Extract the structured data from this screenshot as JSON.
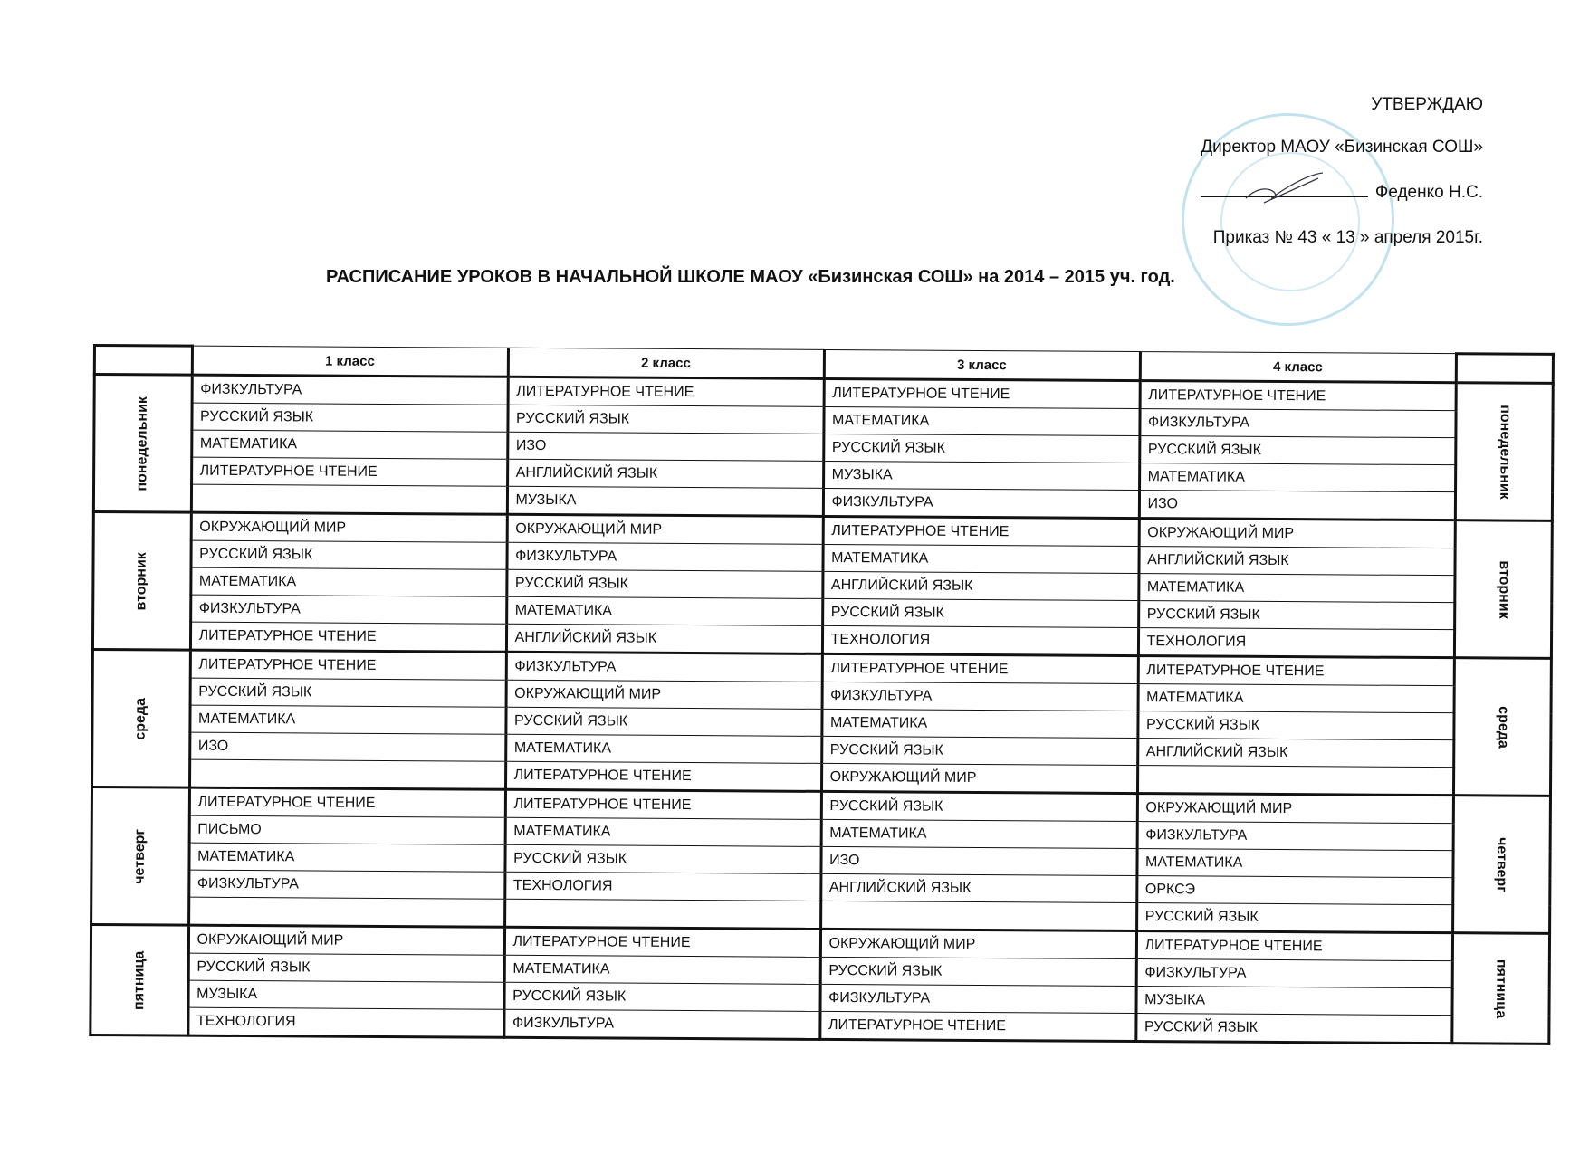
{
  "approval": {
    "approve": "УТВЕРЖДАЮ",
    "director": "Директор МАОУ «Бизинская СОШ»",
    "name": "Феденко Н.С.",
    "order": "Приказ № 43 « 13 » апреля 2015г."
  },
  "title": "РАСПИСАНИЕ УРОКОВ В НАЧАЛЬНОЙ ШКОЛЕ МАОУ «Бизинская СОШ» на 2014 – 2015 уч. год.",
  "classes": [
    "1 класс",
    "2 класс",
    "3 класс",
    "4 класс"
  ],
  "days": [
    {
      "name": "понедельник",
      "rows": [
        [
          "ФИЗКУЛЬТУРА",
          "ЛИТЕРАТУРНОЕ ЧТЕНИЕ",
          "ЛИТЕРАТУРНОЕ ЧТЕНИЕ",
          "ЛИТЕРАТУРНОЕ ЧТЕНИЕ"
        ],
        [
          "РУССКИЙ ЯЗЫК",
          "РУССКИЙ ЯЗЫК",
          "МАТЕМАТИКА",
          "ФИЗКУЛЬТУРА"
        ],
        [
          "МАТЕМАТИКА",
          "ИЗО",
          "РУССКИЙ ЯЗЫК",
          "РУССКИЙ ЯЗЫК"
        ],
        [
          "ЛИТЕРАТУРНОЕ ЧТЕНИЕ",
          "АНГЛИЙСКИЙ ЯЗЫК",
          "МУЗЫКА",
          "МАТЕМАТИКА"
        ],
        [
          "",
          "МУЗЫКА",
          "ФИЗКУЛЬТУРА",
          "ИЗО"
        ]
      ]
    },
    {
      "name": "вторник",
      "rows": [
        [
          "ОКРУЖАЮЩИЙ МИР",
          "ОКРУЖАЮЩИЙ МИР",
          "ЛИТЕРАТУРНОЕ ЧТЕНИЕ",
          "ОКРУЖАЮЩИЙ МИР"
        ],
        [
          "РУССКИЙ ЯЗЫК",
          "ФИЗКУЛЬТУРА",
          "МАТЕМАТИКА",
          "АНГЛИЙСКИЙ ЯЗЫК"
        ],
        [
          "МАТЕМАТИКА",
          "РУССКИЙ ЯЗЫК",
          "АНГЛИЙСКИЙ ЯЗЫК",
          "МАТЕМАТИКА"
        ],
        [
          "ФИЗКУЛЬТУРА",
          "МАТЕМАТИКА",
          "РУССКИЙ ЯЗЫК",
          "РУССКИЙ ЯЗЫК"
        ],
        [
          "ЛИТЕРАТУРНОЕ ЧТЕНИЕ",
          "АНГЛИЙСКИЙ ЯЗЫК",
          "ТЕХНОЛОГИЯ",
          "ТЕХНОЛОГИЯ"
        ]
      ]
    },
    {
      "name": "среда",
      "rows": [
        [
          "ЛИТЕРАТУРНОЕ ЧТЕНИЕ",
          "ФИЗКУЛЬТУРА",
          "ЛИТЕРАТУРНОЕ ЧТЕНИЕ",
          "ЛИТЕРАТУРНОЕ ЧТЕНИЕ"
        ],
        [
          "РУССКИЙ ЯЗЫК",
          "ОКРУЖАЮЩИЙ МИР",
          "ФИЗКУЛЬТУРА",
          "МАТЕМАТИКА"
        ],
        [
          "МАТЕМАТИКА",
          "РУССКИЙ ЯЗЫК",
          "МАТЕМАТИКА",
          "РУССКИЙ ЯЗЫК"
        ],
        [
          "ИЗО",
          "МАТЕМАТИКА",
          "РУССКИЙ ЯЗЫК",
          "АНГЛИЙСКИЙ ЯЗЫК"
        ],
        [
          "",
          "ЛИТЕРАТУРНОЕ ЧТЕНИЕ",
          "ОКРУЖАЮЩИЙ МИР",
          ""
        ]
      ]
    },
    {
      "name": "четверг",
      "rows": [
        [
          "ЛИТЕРАТУРНОЕ ЧТЕНИЕ",
          "ЛИТЕРАТУРНОЕ ЧТЕНИЕ",
          "РУССКИЙ ЯЗЫК",
          "ОКРУЖАЮЩИЙ МИР"
        ],
        [
          "ПИСЬМО",
          "МАТЕМАТИКА",
          "МАТЕМАТИКА",
          "ФИЗКУЛЬТУРА"
        ],
        [
          "МАТЕМАТИКА",
          "РУССКИЙ ЯЗЫК",
          "ИЗО",
          "МАТЕМАТИКА"
        ],
        [
          "ФИЗКУЛЬТУРА",
          "ТЕХНОЛОГИЯ",
          "АНГЛИЙСКИЙ ЯЗЫК",
          "ОРКСЭ"
        ],
        [
          "",
          "",
          "",
          "РУССКИЙ ЯЗЫК"
        ]
      ]
    },
    {
      "name": "пятница",
      "rows": [
        [
          "ОКРУЖАЮЩИЙ МИР",
          "ЛИТЕРАТУРНОЕ ЧТЕНИЕ",
          "ОКРУЖАЮЩИЙ МИР",
          "ЛИТЕРАТУРНОЕ ЧТЕНИЕ"
        ],
        [
          "РУССКИЙ ЯЗЫК",
          "МАТЕМАТИКА",
          "РУССКИЙ ЯЗЫК",
          "ФИЗКУЛЬТУРА"
        ],
        [
          "МУЗЫКА",
          "РУССКИЙ ЯЗЫК",
          "ФИЗКУЛЬТУРА",
          "МУЗЫКА"
        ],
        [
          "ТЕХНОЛОГИЯ",
          "ФИЗКУЛЬТУРА",
          "ЛИТЕРАТУРНОЕ ЧТЕНИЕ",
          "РУССКИЙ ЯЗЫК"
        ]
      ]
    }
  ]
}
